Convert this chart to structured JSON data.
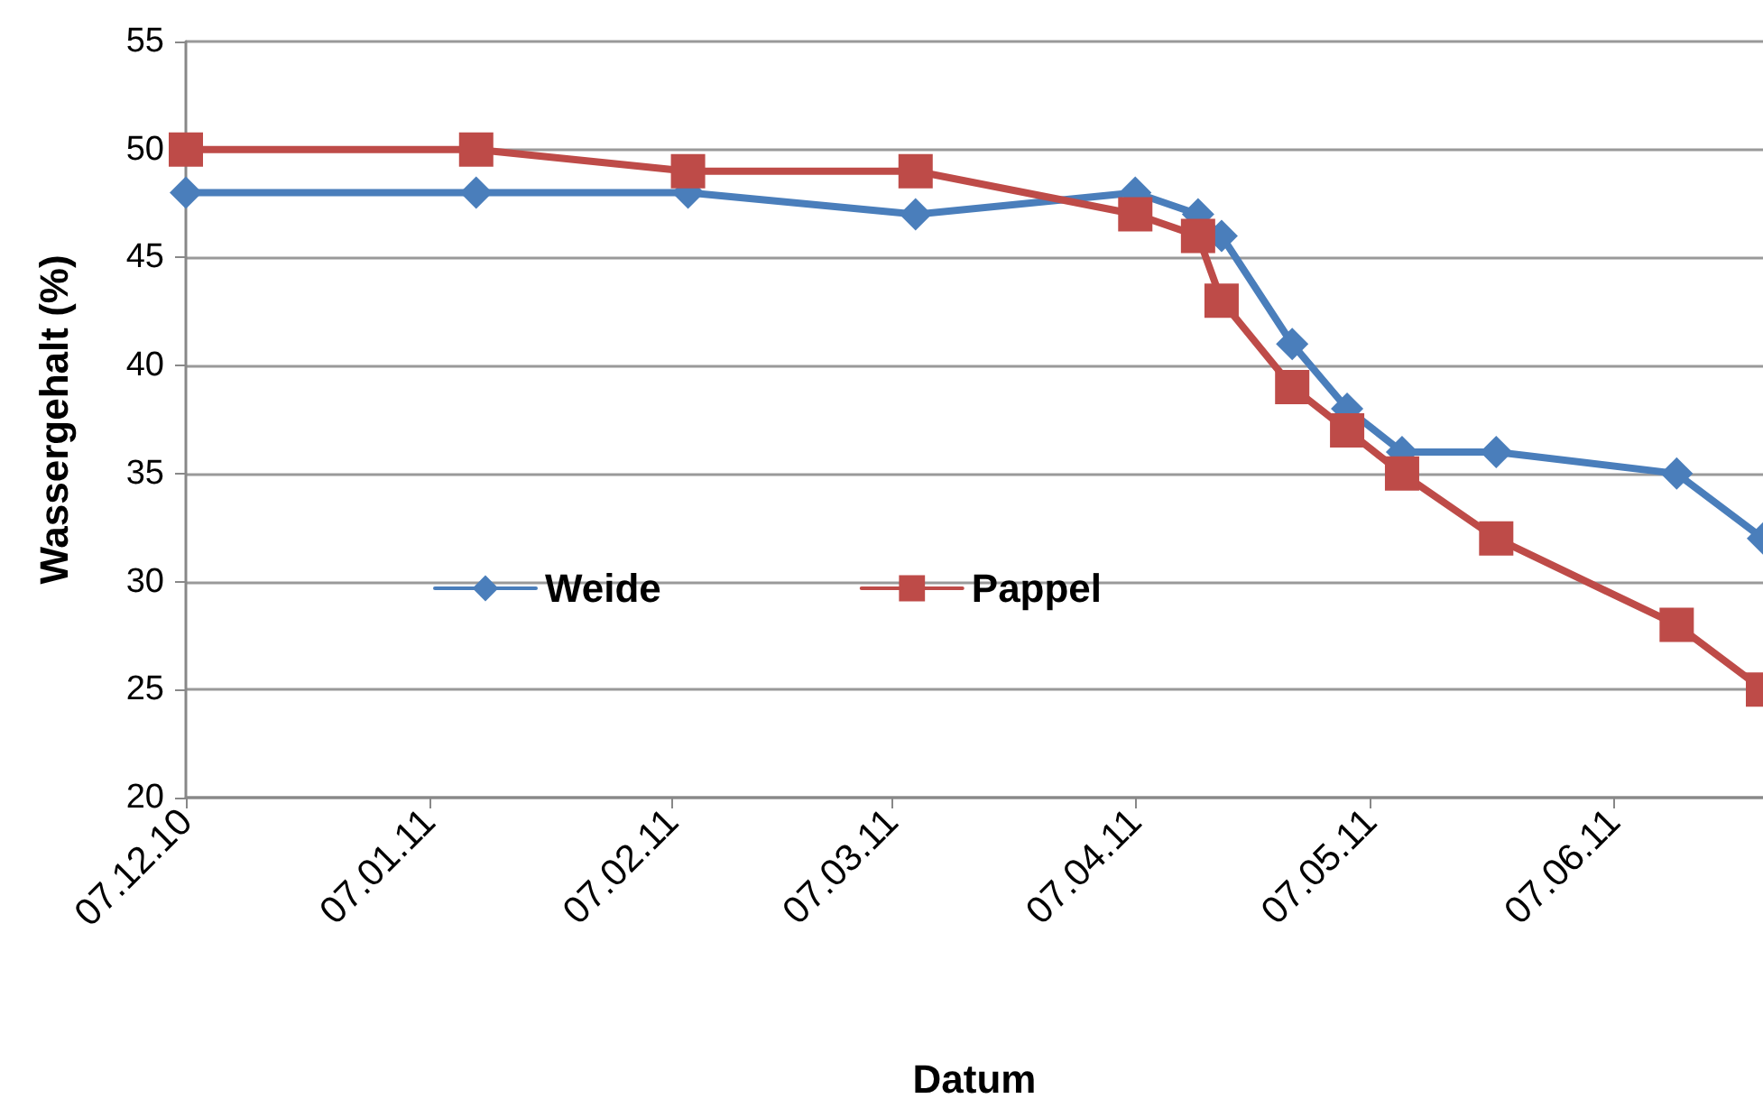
{
  "chart_data": {
    "type": "line",
    "xlabel": "Datum",
    "ylabel": "Wassergehalt (%)",
    "x": [
      "2010-12-07",
      "2011-01-13",
      "2011-02-09",
      "2011-03-10",
      "2011-04-07",
      "2011-04-15",
      "2011-04-18",
      "2011-04-27",
      "2011-05-04",
      "2011-05-11",
      "2011-05-23",
      "2011-06-15",
      "2011-06-26"
    ],
    "series": [
      {
        "name": "Weide",
        "color": "#4a7ebb",
        "marker": "diamond",
        "values": [
          48,
          48,
          48,
          47,
          48,
          47,
          46,
          41,
          38,
          36,
          36,
          35,
          32
        ]
      },
      {
        "name": "Pappel",
        "color": "#be4b48",
        "marker": "square",
        "values": [
          50,
          50,
          49,
          49,
          47,
          46,
          43,
          39,
          37,
          35,
          32,
          28,
          25
        ]
      }
    ],
    "xlim": [
      "2010-12-07",
      "2011-06-26"
    ],
    "xticks": [
      {
        "value": "2010-12-07",
        "label": "07.12.10"
      },
      {
        "value": "2011-01-07",
        "label": "07.01.11"
      },
      {
        "value": "2011-02-07",
        "label": "07.02.11"
      },
      {
        "value": "2011-03-07",
        "label": "07.03.11"
      },
      {
        "value": "2011-04-07",
        "label": "07.04.11"
      },
      {
        "value": "2011-05-07",
        "label": "07.05.11"
      },
      {
        "value": "2011-06-07",
        "label": "07.06.11"
      }
    ],
    "ylim": [
      20,
      55
    ],
    "yticks": [
      20,
      25,
      30,
      35,
      40,
      45,
      50,
      55
    ],
    "grid": "y",
    "legend": "left",
    "line_style": "solid"
  }
}
